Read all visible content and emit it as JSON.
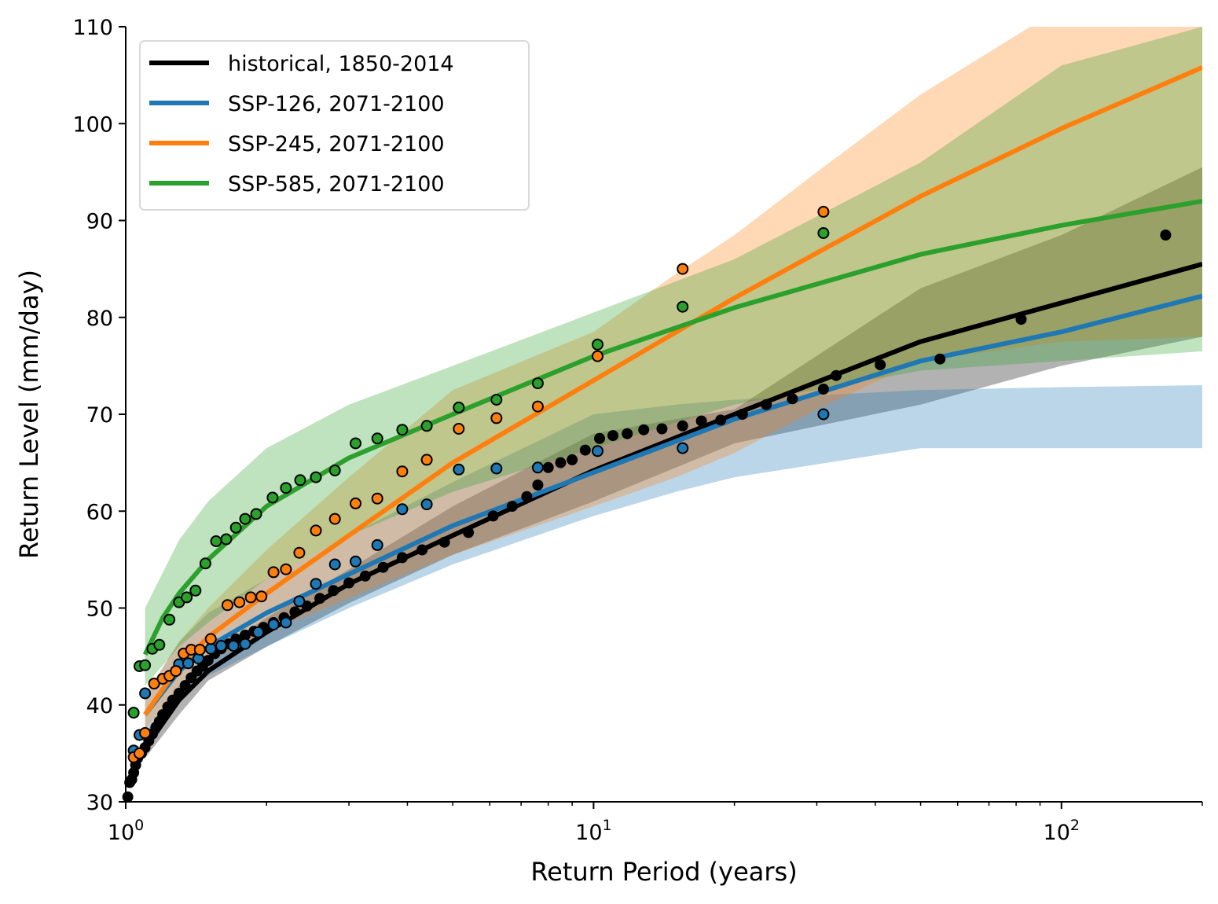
{
  "chart_data": {
    "type": "line",
    "xlabel": "Return Period (years)",
    "ylabel": "Return Level (mm/day)",
    "xscale": "log",
    "xlim": [
      1,
      200
    ],
    "ylim": [
      30,
      110
    ],
    "grid": false,
    "legend_position": "top-left",
    "x_ticks": [
      {
        "value": 1,
        "base": "10",
        "exp": "0"
      },
      {
        "value": 10,
        "base": "10",
        "exp": "1"
      },
      {
        "value": 100,
        "base": "10",
        "exp": "2"
      }
    ],
    "y_ticks": [
      30,
      40,
      50,
      60,
      70,
      80,
      90,
      100,
      110
    ],
    "series": [
      {
        "name": "historical, 1850-2014",
        "color": "#000000",
        "fit": {
          "x": [
            1.1,
            1.3,
            1.5,
            2,
            3,
            5,
            10,
            20,
            50,
            100,
            200
          ],
          "y": [
            35.5,
            40.5,
            43.5,
            47.5,
            52.5,
            57.5,
            64.2,
            70.0,
            77.5,
            81.5,
            85.5
          ]
        },
        "band": {
          "x": [
            1.1,
            1.3,
            1.5,
            2,
            3,
            5,
            10,
            15,
            20,
            50,
            100,
            200
          ],
          "lower": [
            34.5,
            39.0,
            42.5,
            46.0,
            50.5,
            55.5,
            61.0,
            64.5,
            67.0,
            71.0,
            75.0,
            78.0
          ],
          "upper": [
            37.0,
            42.0,
            45.0,
            49.0,
            54.0,
            60.5,
            68.0,
            69.5,
            70.5,
            83.0,
            88.5,
            95.5
          ]
        },
        "points": {
          "x": [
            1.01,
            1.02,
            1.03,
            1.04,
            1.05,
            1.06,
            1.08,
            1.1,
            1.12,
            1.14,
            1.16,
            1.18,
            1.2,
            1.23,
            1.26,
            1.3,
            1.34,
            1.38,
            1.42,
            1.46,
            1.5,
            1.55,
            1.6,
            1.66,
            1.72,
            1.8,
            1.88,
            1.97,
            2.07,
            2.18,
            2.3,
            2.44,
            2.6,
            2.78,
            3.0,
            3.25,
            3.55,
            3.9,
            4.3,
            4.8,
            5.4,
            6.1,
            6.7,
            7.2,
            7.6,
            8.0,
            8.5,
            9.0,
            9.6,
            10.3,
            11.0,
            11.8,
            12.8,
            14.0,
            15.5,
            17.0,
            18.7,
            20.8,
            23.4,
            26.6,
            31.0,
            33.0,
            41.0,
            55.0,
            82.0,
            167.0
          ],
          "y": [
            30.5,
            32.0,
            32.3,
            33.0,
            33.8,
            34.5,
            35.0,
            35.6,
            36.3,
            37.0,
            37.7,
            38.3,
            39.0,
            39.8,
            40.5,
            41.2,
            42.0,
            42.8,
            43.5,
            44.0,
            44.6,
            45.3,
            45.8,
            46.3,
            46.8,
            47.2,
            47.6,
            48.0,
            48.5,
            49.0,
            49.6,
            50.2,
            51.0,
            51.8,
            52.6,
            53.3,
            54.2,
            55.2,
            56.0,
            56.8,
            57.8,
            59.5,
            60.5,
            61.5,
            62.7,
            64.5,
            65.0,
            65.3,
            66.3,
            67.5,
            67.8,
            68.0,
            68.4,
            68.5,
            68.8,
            69.3,
            69.4,
            70.0,
            71.0,
            71.6,
            72.6,
            74.0,
            75.1,
            75.7,
            79.8,
            88.5
          ]
        }
      },
      {
        "name": "SSP-126, 2071-2100",
        "color": "#1f77b4",
        "fit": {
          "x": [
            1.1,
            1.3,
            1.5,
            2,
            3,
            5,
            10,
            20,
            50,
            100,
            200
          ],
          "y": [
            39.0,
            43.5,
            46.0,
            49.5,
            53.5,
            58.5,
            64.0,
            69.5,
            75.5,
            78.5,
            82.2
          ]
        },
        "band": {
          "x": [
            1.1,
            1.3,
            1.5,
            2,
            3,
            5,
            10,
            15,
            20,
            50,
            100,
            200
          ],
          "lower": [
            37.0,
            40.5,
            43.0,
            46.0,
            50.0,
            54.5,
            59.5,
            62.0,
            63.5,
            66.5,
            66.5,
            66.5
          ],
          "upper": [
            41.0,
            46.5,
            49.5,
            53.0,
            57.5,
            63.0,
            70.0,
            71.0,
            71.5,
            72.5,
            72.8,
            73.0
          ]
        },
        "points": {
          "x": [
            1.04,
            1.07,
            1.1,
            1.3,
            1.36,
            1.43,
            1.52,
            1.6,
            1.7,
            1.8,
            1.92,
            2.07,
            2.2,
            2.35,
            2.55,
            2.8,
            3.1,
            3.45,
            3.9,
            4.4,
            5.15,
            6.2,
            7.6,
            10.2,
            15.5,
            31.0
          ],
          "y": [
            35.3,
            36.9,
            41.2,
            44.2,
            44.3,
            44.8,
            45.8,
            46.1,
            46.1,
            46.3,
            47.5,
            48.3,
            48.5,
            50.7,
            52.5,
            54.5,
            54.8,
            56.5,
            60.2,
            60.7,
            64.3,
            64.4,
            64.5,
            66.2,
            66.5,
            70.0
          ]
        }
      },
      {
        "name": "SSP-245, 2071-2100",
        "color": "#ff7f0e",
        "fit": {
          "x": [
            1.1,
            1.3,
            1.5,
            2,
            3,
            5,
            10,
            20,
            50,
            100,
            200
          ],
          "y": [
            39.0,
            44.0,
            47.0,
            51.5,
            57.5,
            65.0,
            73.5,
            82.0,
            92.5,
            99.5,
            105.8
          ]
        },
        "band": {
          "x": [
            1.1,
            1.3,
            1.5,
            2,
            3,
            5,
            10,
            15,
            20,
            30,
            50,
            100,
            200
          ],
          "lower": [
            37.5,
            41.5,
            44.5,
            47.5,
            51.0,
            55.5,
            60.5,
            63.5,
            66.0,
            70.5,
            75.5,
            77.5,
            78.0
          ],
          "upper": [
            41.0,
            46.5,
            50.0,
            56.0,
            63.5,
            72.5,
            78.5,
            84.5,
            88.5,
            95.0,
            103.0,
            112.0,
            115.0
          ]
        },
        "points": {
          "x": [
            1.04,
            1.07,
            1.1,
            1.15,
            1.2,
            1.24,
            1.28,
            1.33,
            1.38,
            1.44,
            1.52,
            1.65,
            1.75,
            1.85,
            1.95,
            2.07,
            2.2,
            2.35,
            2.55,
            2.8,
            3.1,
            3.45,
            3.9,
            4.4,
            5.15,
            6.2,
            7.6,
            10.2,
            15.5,
            31.0
          ],
          "y": [
            34.6,
            35.0,
            37.1,
            42.2,
            42.7,
            43.0,
            43.5,
            45.3,
            45.7,
            45.7,
            46.8,
            50.3,
            50.6,
            51.1,
            51.2,
            53.7,
            54.0,
            55.7,
            58.0,
            59.2,
            60.8,
            61.3,
            64.1,
            65.3,
            68.5,
            69.6,
            70.8,
            76.0,
            85.0,
            90.9
          ]
        }
      },
      {
        "name": "SSP-585, 2071-2100",
        "color": "#2ca02c",
        "fit": {
          "x": [
            1.1,
            1.2,
            1.3,
            1.5,
            2,
            3,
            5,
            10,
            20,
            50,
            100,
            200
          ],
          "y": [
            45.2,
            49.0,
            51.5,
            55.0,
            60.5,
            65.5,
            70.0,
            76.0,
            81.0,
            86.5,
            89.5,
            92.0
          ]
        },
        "band": {
          "x": [
            1.1,
            1.3,
            1.5,
            2,
            3,
            5,
            10,
            20,
            50,
            100,
            200
          ],
          "lower": [
            42.0,
            46.0,
            48.5,
            53.0,
            57.5,
            62.0,
            66.5,
            71.0,
            74.5,
            75.5,
            76.5
          ],
          "upper": [
            50.0,
            57.0,
            61.0,
            66.5,
            71.0,
            75.0,
            80.5,
            86.0,
            96.0,
            106.0,
            110.0
          ]
        },
        "points": {
          "x": [
            1.04,
            1.07,
            1.1,
            1.14,
            1.18,
            1.24,
            1.3,
            1.35,
            1.41,
            1.48,
            1.56,
            1.64,
            1.72,
            1.8,
            1.9,
            2.06,
            2.2,
            2.36,
            2.55,
            2.8,
            3.1,
            3.45,
            3.9,
            4.4,
            5.15,
            6.2,
            7.6,
            10.2,
            15.5,
            31.0
          ],
          "y": [
            39.2,
            44.0,
            44.1,
            45.8,
            46.2,
            48.8,
            50.6,
            51.1,
            51.8,
            54.6,
            56.9,
            57.1,
            58.3,
            59.2,
            59.7,
            61.4,
            62.4,
            63.2,
            63.5,
            64.2,
            67.0,
            67.5,
            68.4,
            68.8,
            70.7,
            71.5,
            73.2,
            77.2,
            81.1,
            88.7
          ]
        }
      }
    ]
  }
}
